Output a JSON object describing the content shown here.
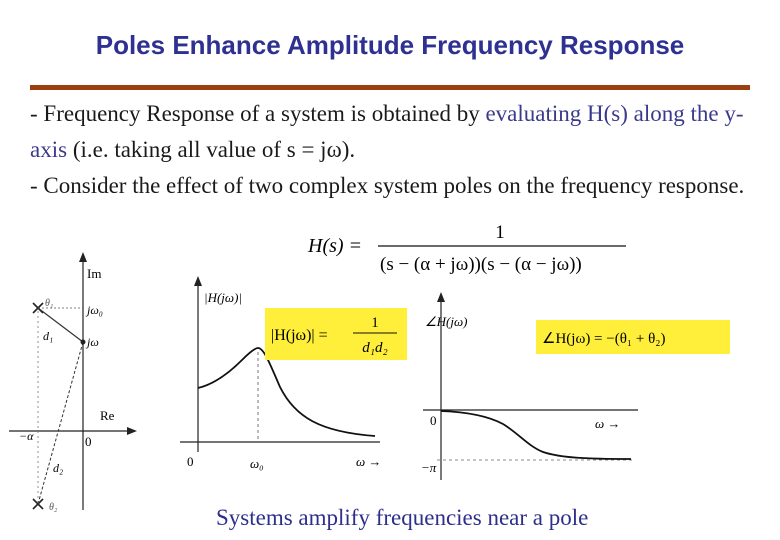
{
  "title": "Poles Enhance Amplitude Frequency Response",
  "bullets": {
    "b1_pre": "- Frequency Response of a system is obtained by ",
    "b1_hl": "evaluating H(s) along the y-axis",
    "b1_post": " (i.e. taking all value of s = jω).",
    "b2": "- Consider the effect of two complex system poles on the frequency response."
  },
  "equation": {
    "lhs": "H(s) =",
    "numerator": "1",
    "denominator": "(s − (α + jω))(s − (α − jω))"
  },
  "pole_plot": {
    "im_label": "Im",
    "re_label": "Re",
    "origin": "0",
    "neg_alpha": "−α",
    "jw0": "jω₀",
    "jw": "jω",
    "d1": "d₁",
    "d2": "d₂",
    "theta1": "θ₁",
    "theta2": "θ₂"
  },
  "magnitude_plot": {
    "ylabel": "|H(jω)|",
    "x_origin": "0",
    "x_peak": "ω₀",
    "x_axis": "ω →",
    "formula_lhs": "|H(jω)| =",
    "formula_num": "1",
    "formula_den": "d₁d₂"
  },
  "phase_plot": {
    "ylabel": "∠H(jω)",
    "y_zero": "0",
    "y_min": "−π",
    "x_axis": "ω →",
    "formula": "∠H(jω) = −(θ₁ + θ₂)"
  },
  "caption": "Systems amplify frequencies near a pole",
  "colors": {
    "title": "#2e3192",
    "rule": "#9b3f10",
    "highlight_text": "#3a3a8c",
    "box": "#ffef3a"
  }
}
